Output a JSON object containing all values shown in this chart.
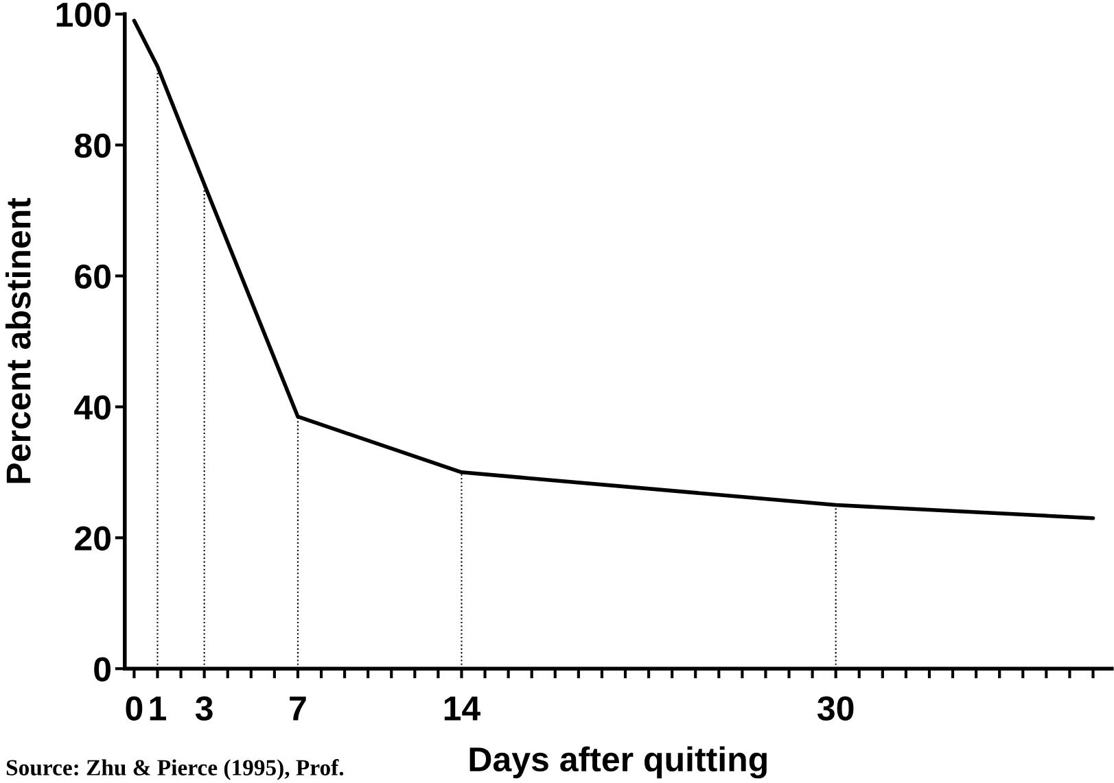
{
  "chart_data": {
    "type": "line",
    "xlabel": "Days after quitting",
    "ylabel": "Percent abstinent",
    "x": [
      0,
      1,
      3,
      7,
      14,
      30,
      41
    ],
    "series": [
      {
        "color": "#000000",
        "values": [
          99,
          92,
          74,
          38.5,
          30,
          25,
          23
        ]
      }
    ],
    "xlim": [
      -0.4,
      41.8
    ],
    "ylim": [
      0,
      100
    ],
    "xticks": [
      0,
      1,
      {
        "value": 2,
        "label": null
      },
      3,
      {
        "value": 4,
        "label": null
      },
      {
        "value": 5,
        "label": null
      },
      {
        "value": 6,
        "label": null
      },
      7,
      {
        "value": 8,
        "label": null
      },
      {
        "value": 9,
        "label": null
      },
      {
        "value": 10,
        "label": null
      },
      {
        "value": 11,
        "label": null
      },
      {
        "value": 12,
        "label": null
      },
      {
        "value": 13,
        "label": null
      },
      14,
      {
        "value": 15,
        "label": null
      },
      {
        "value": 16,
        "label": null
      },
      {
        "value": 17,
        "label": null
      },
      {
        "value": 18,
        "label": null
      },
      {
        "value": 19,
        "label": null
      },
      {
        "value": 20,
        "label": null
      },
      {
        "value": 21,
        "label": null
      },
      {
        "value": 22,
        "label": null
      },
      {
        "value": 23,
        "label": null
      },
      {
        "value": 24,
        "label": null
      },
      {
        "value": 25,
        "label": null
      },
      {
        "value": 26,
        "label": null
      },
      {
        "value": 27,
        "label": null
      },
      {
        "value": 28,
        "label": null
      },
      {
        "value": 29,
        "label": null
      },
      30,
      {
        "value": 31,
        "label": null
      },
      {
        "value": 32,
        "label": null
      },
      {
        "value": 33,
        "label": null
      },
      {
        "value": 34,
        "label": null
      },
      {
        "value": 35,
        "label": null
      },
      {
        "value": 36,
        "label": null
      },
      {
        "value": 37,
        "label": null
      },
      {
        "value": 38,
        "label": null
      },
      {
        "value": 39,
        "label": null
      },
      {
        "value": 40,
        "label": null
      },
      {
        "value": 41,
        "label": null
      }
    ],
    "yticks": [
      0,
      20,
      40,
      60,
      80,
      100
    ],
    "ref_lines": [
      {
        "axis": "x",
        "value": 1,
        "line_style": "dotted",
        "color": "#000000"
      },
      {
        "axis": "x",
        "value": 3,
        "line_style": "dotted",
        "color": "#000000"
      },
      {
        "axis": "x",
        "value": 7,
        "line_style": "dotted",
        "color": "#000000"
      },
      {
        "axis": "x",
        "value": 14,
        "line_style": "dotted",
        "color": "#000000"
      },
      {
        "axis": "x",
        "value": 30,
        "line_style": "dotted",
        "color": "#000000"
      }
    ],
    "marker": "none",
    "line_style": "solid",
    "grid": false,
    "legend": false,
    "annotations": [
      "Source: Zhu & Pierce (1995), Prof."
    ]
  }
}
